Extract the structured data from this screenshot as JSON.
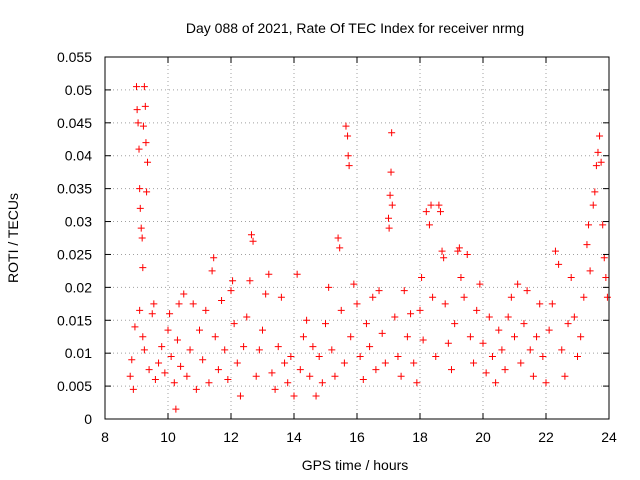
{
  "chart_data": {
    "type": "scatter",
    "title": "Day 088 of 2021, Rate Of TEC Index for receiver nrmg",
    "xlabel": "GPS time / hours",
    "ylabel": "ROTI / TECUs",
    "xlim": [
      8,
      24
    ],
    "ylim": [
      0,
      0.055
    ],
    "xticks": [
      "8",
      "10",
      "12",
      "14",
      "16",
      "18",
      "20",
      "22",
      "24"
    ],
    "yticks": [
      "0",
      "0.005",
      "0.01",
      "0.015",
      "0.02",
      "0.025",
      "0.03",
      "0.035",
      "0.04",
      "0.045",
      "0.05",
      "0.055"
    ],
    "grid": true,
    "marker": "+",
    "color": "#ff0000",
    "series": [
      {
        "name": "ROTI",
        "points": [
          [
            8.8,
            0.0065
          ],
          [
            8.85,
            0.009
          ],
          [
            8.9,
            0.0045
          ],
          [
            8.95,
            0.014
          ],
          [
            9.0,
            0.0505
          ],
          [
            9.02,
            0.047
          ],
          [
            9.05,
            0.045
          ],
          [
            9.08,
            0.041
          ],
          [
            9.1,
            0.035
          ],
          [
            9.12,
            0.032
          ],
          [
            9.15,
            0.029
          ],
          [
            9.18,
            0.0275
          ],
          [
            9.2,
            0.023
          ],
          [
            9.22,
            0.0445
          ],
          [
            9.25,
            0.0505
          ],
          [
            9.28,
            0.0475
          ],
          [
            9.3,
            0.042
          ],
          [
            9.32,
            0.0345
          ],
          [
            9.35,
            0.039
          ],
          [
            9.1,
            0.0165
          ],
          [
            9.2,
            0.0125
          ],
          [
            9.25,
            0.0105
          ],
          [
            9.4,
            0.0075
          ],
          [
            9.5,
            0.016
          ],
          [
            9.55,
            0.0175
          ],
          [
            9.6,
            0.006
          ],
          [
            9.7,
            0.0085
          ],
          [
            9.8,
            0.011
          ],
          [
            9.9,
            0.007
          ],
          [
            10.0,
            0.0135
          ],
          [
            10.05,
            0.016
          ],
          [
            10.1,
            0.0095
          ],
          [
            10.2,
            0.0055
          ],
          [
            10.25,
            0.0015
          ],
          [
            10.3,
            0.012
          ],
          [
            10.35,
            0.0175
          ],
          [
            10.4,
            0.008
          ],
          [
            10.5,
            0.019
          ],
          [
            10.6,
            0.0065
          ],
          [
            10.7,
            0.0105
          ],
          [
            10.8,
            0.0175
          ],
          [
            10.9,
            0.0045
          ],
          [
            11.0,
            0.0135
          ],
          [
            11.1,
            0.009
          ],
          [
            11.2,
            0.0165
          ],
          [
            11.3,
            0.0055
          ],
          [
            11.4,
            0.0225
          ],
          [
            11.45,
            0.0245
          ],
          [
            11.5,
            0.0125
          ],
          [
            11.6,
            0.0075
          ],
          [
            11.7,
            0.018
          ],
          [
            11.8,
            0.0105
          ],
          [
            11.9,
            0.006
          ],
          [
            12.0,
            0.0195
          ],
          [
            12.05,
            0.021
          ],
          [
            12.1,
            0.0145
          ],
          [
            12.2,
            0.0085
          ],
          [
            12.3,
            0.0035
          ],
          [
            12.4,
            0.011
          ],
          [
            12.5,
            0.0155
          ],
          [
            12.6,
            0.021
          ],
          [
            12.65,
            0.028
          ],
          [
            12.7,
            0.027
          ],
          [
            12.8,
            0.0065
          ],
          [
            12.9,
            0.0105
          ],
          [
            13.0,
            0.0135
          ],
          [
            13.1,
            0.019
          ],
          [
            13.2,
            0.022
          ],
          [
            13.3,
            0.007
          ],
          [
            13.4,
            0.0045
          ],
          [
            13.5,
            0.011
          ],
          [
            13.6,
            0.0185
          ],
          [
            13.7,
            0.0085
          ],
          [
            13.8,
            0.0055
          ],
          [
            13.9,
            0.0095
          ],
          [
            14.0,
            0.0035
          ],
          [
            14.1,
            0.022
          ],
          [
            14.2,
            0.0075
          ],
          [
            14.3,
            0.0125
          ],
          [
            14.4,
            0.015
          ],
          [
            14.5,
            0.0065
          ],
          [
            14.6,
            0.011
          ],
          [
            14.7,
            0.0035
          ],
          [
            14.8,
            0.0095
          ],
          [
            14.9,
            0.0055
          ],
          [
            15.0,
            0.0145
          ],
          [
            15.1,
            0.02
          ],
          [
            15.2,
            0.0105
          ],
          [
            15.3,
            0.0065
          ],
          [
            15.4,
            0.0275
          ],
          [
            15.45,
            0.026
          ],
          [
            15.5,
            0.0165
          ],
          [
            15.6,
            0.0085
          ],
          [
            15.65,
            0.0445
          ],
          [
            15.7,
            0.043
          ],
          [
            15.72,
            0.04
          ],
          [
            15.75,
            0.0385
          ],
          [
            15.8,
            0.0125
          ],
          [
            15.9,
            0.0205
          ],
          [
            16.0,
            0.0175
          ],
          [
            16.1,
            0.0095
          ],
          [
            16.2,
            0.006
          ],
          [
            16.3,
            0.0145
          ],
          [
            16.4,
            0.011
          ],
          [
            16.5,
            0.0185
          ],
          [
            16.6,
            0.0075
          ],
          [
            16.7,
            0.0195
          ],
          [
            16.8,
            0.013
          ],
          [
            16.9,
            0.0085
          ],
          [
            17.0,
            0.0305
          ],
          [
            17.02,
            0.029
          ],
          [
            17.05,
            0.034
          ],
          [
            17.08,
            0.0375
          ],
          [
            17.1,
            0.0435
          ],
          [
            17.12,
            0.0325
          ],
          [
            17.2,
            0.0155
          ],
          [
            17.3,
            0.0095
          ],
          [
            17.4,
            0.0065
          ],
          [
            17.5,
            0.0195
          ],
          [
            17.6,
            0.0125
          ],
          [
            17.7,
            0.016
          ],
          [
            17.8,
            0.0085
          ],
          [
            17.9,
            0.0055
          ],
          [
            18.0,
            0.0165
          ],
          [
            18.05,
            0.0215
          ],
          [
            18.1,
            0.012
          ],
          [
            18.2,
            0.0315
          ],
          [
            18.3,
            0.0295
          ],
          [
            18.35,
            0.0325
          ],
          [
            18.4,
            0.0185
          ],
          [
            18.5,
            0.0095
          ],
          [
            18.6,
            0.0325
          ],
          [
            18.65,
            0.0315
          ],
          [
            18.7,
            0.0255
          ],
          [
            18.75,
            0.0245
          ],
          [
            18.8,
            0.0175
          ],
          [
            18.9,
            0.0115
          ],
          [
            19.0,
            0.0075
          ],
          [
            19.1,
            0.0145
          ],
          [
            19.2,
            0.0255
          ],
          [
            19.25,
            0.026
          ],
          [
            19.3,
            0.0215
          ],
          [
            19.4,
            0.0185
          ],
          [
            19.5,
            0.025
          ],
          [
            19.6,
            0.0125
          ],
          [
            19.7,
            0.0085
          ],
          [
            19.8,
            0.0165
          ],
          [
            19.9,
            0.0205
          ],
          [
            20.0,
            0.0115
          ],
          [
            20.1,
            0.007
          ],
          [
            20.2,
            0.0155
          ],
          [
            20.3,
            0.0095
          ],
          [
            20.4,
            0.0055
          ],
          [
            20.5,
            0.0135
          ],
          [
            20.6,
            0.0105
          ],
          [
            20.7,
            0.0075
          ],
          [
            20.8,
            0.0155
          ],
          [
            20.9,
            0.0185
          ],
          [
            21.0,
            0.0125
          ],
          [
            21.1,
            0.0205
          ],
          [
            21.2,
            0.0085
          ],
          [
            21.3,
            0.0145
          ],
          [
            21.4,
            0.0195
          ],
          [
            21.5,
            0.0105
          ],
          [
            21.6,
            0.0065
          ],
          [
            21.7,
            0.0125
          ],
          [
            21.8,
            0.0175
          ],
          [
            21.9,
            0.0095
          ],
          [
            22.0,
            0.0055
          ],
          [
            22.1,
            0.0135
          ],
          [
            22.2,
            0.0175
          ],
          [
            22.3,
            0.0255
          ],
          [
            22.4,
            0.0235
          ],
          [
            22.5,
            0.0105
          ],
          [
            22.6,
            0.0065
          ],
          [
            22.7,
            0.0145
          ],
          [
            22.8,
            0.0215
          ],
          [
            22.9,
            0.0155
          ],
          [
            23.0,
            0.0095
          ],
          [
            23.1,
            0.0125
          ],
          [
            23.2,
            0.0185
          ],
          [
            23.3,
            0.0265
          ],
          [
            23.35,
            0.0295
          ],
          [
            23.4,
            0.0225
          ],
          [
            23.5,
            0.0325
          ],
          [
            23.55,
            0.0345
          ],
          [
            23.6,
            0.0385
          ],
          [
            23.65,
            0.0405
          ],
          [
            23.7,
            0.043
          ],
          [
            23.75,
            0.039
          ],
          [
            23.8,
            0.0295
          ],
          [
            23.85,
            0.0245
          ],
          [
            23.9,
            0.0215
          ],
          [
            23.95,
            0.0185
          ]
        ]
      }
    ]
  }
}
